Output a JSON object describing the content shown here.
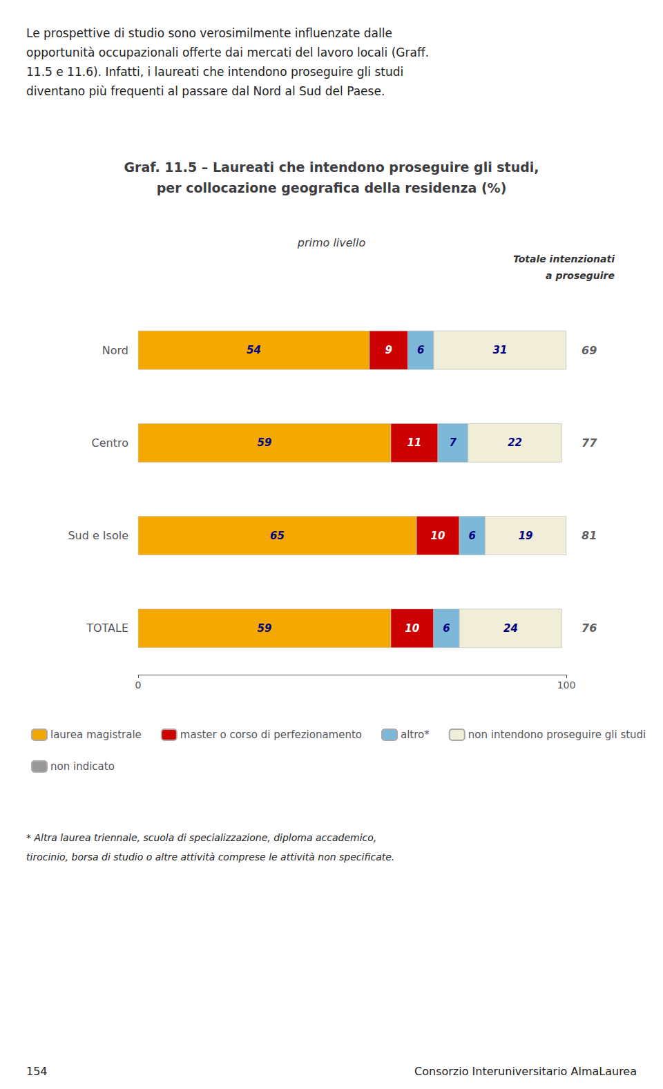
{
  "chart_data": {
    "type": "bar",
    "orientation": "horizontal",
    "stacked": true,
    "data_labels": true,
    "grid": false,
    "legend": "bottom",
    "intro": [
      "Le prospettive di studio sono verosimilmente influenzate dalle",
      "opportunità occupazionali offerte dai mercati del lavoro locali (Graff.",
      "11.5 e 11.6). Infatti, i laureati che intendono proseguire gli studi",
      "diventano più frequenti al passare dal Nord al Sud del Paese."
    ],
    "title": "Graf. 11.5 – Laureati che intendono proseguire gli studi,\nper collocazione geografica della residenza (%)",
    "subtitle": "primo livello",
    "categories": [
      "Nord",
      "Centro",
      "Sud e Isole",
      "TOTALE"
    ],
    "series": [
      {
        "name": "laurea magistrale",
        "color": "#F5A800",
        "values": [
          54,
          59,
          65,
          59
        ]
      },
      {
        "name": "master o corso di perfezionamento",
        "color": "#CC0000",
        "values": [
          9,
          11,
          10,
          10
        ]
      },
      {
        "name": "altro*",
        "color": "#7DB8D8",
        "values": [
          6,
          7,
          6,
          6
        ]
      },
      {
        "name": "non intendono proseguire gli studi",
        "color": "#F0EDD8",
        "values": [
          31,
          22,
          19,
          24
        ]
      },
      {
        "name": "non indicato",
        "color": "#999999",
        "values": [
          null,
          null,
          null,
          null
        ]
      }
    ],
    "xlim": [
      0,
      100
    ],
    "xticks": [
      0,
      100
    ],
    "totale_label": [
      "Totale intenzionati",
      "a proseguire"
    ],
    "totale_values": [
      69,
      77,
      81,
      76
    ],
    "footnote": [
      "* Altra laurea triennale, scuola di specializzazione, diploma accademico,",
      "tirocinio, borsa di studio o altre attività comprese le attività non specificate."
    ],
    "footer": [
      "154",
      "Consorzio Interuniversitario AlmaLaurea"
    ]
  }
}
